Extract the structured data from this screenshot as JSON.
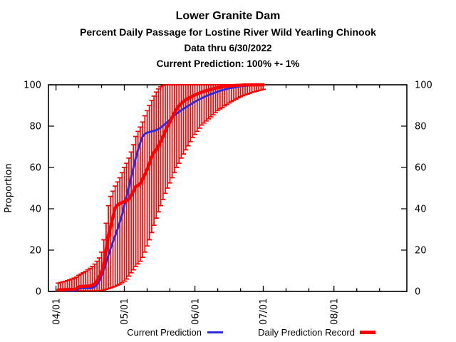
{
  "header": {
    "title": "Lower Granite Dam",
    "subtitle": "Percent Daily Passage for Lostine River Wild Yearling Chinook",
    "data_thru": "Data thru 6/30/2022",
    "prediction": "Current Prediction: 100% +- 1%"
  },
  "legend": {
    "current": "Current Prediction",
    "record": "Daily Prediction Record"
  },
  "chart_data": {
    "type": "line",
    "title": "Lower Granite Dam",
    "ylabel": "Proportion",
    "ylim": [
      0,
      100
    ],
    "y_ticks": [
      0,
      20,
      40,
      60,
      80,
      100
    ],
    "x_range_days": [
      -3.3,
      154
    ],
    "x_major_ticks": [
      {
        "days": 0,
        "label": "04/01"
      },
      {
        "days": 30,
        "label": "05/01"
      },
      {
        "days": 61,
        "label": "06/01"
      },
      {
        "days": 91,
        "label": "07/01"
      },
      {
        "days": 122,
        "label": "08/01"
      }
    ],
    "x_minor_ticks_days": [
      10,
      20,
      40,
      50,
      71,
      81,
      101,
      111,
      132,
      142
    ],
    "colors": {
      "current": "#2b2bdf",
      "record": "#ff0000",
      "axis": "#000000"
    },
    "series": [
      {
        "name": "Current Prediction",
        "color": "#2b2bdf",
        "x_start_day": 1,
        "x_step_days": 1,
        "values": [
          0.5,
          0.5,
          0.5,
          0.5,
          0.5,
          0.5,
          0.5,
          0.5,
          0.5,
          1.3,
          1.6,
          1.6,
          1.6,
          1.6,
          1.6,
          1.7,
          2.2,
          3.2,
          5,
          7.5,
          10.5,
          14,
          17.5,
          21,
          24,
          27,
          30,
          33.5,
          37,
          41.5,
          46,
          50.5,
          55.5,
          60,
          64.5,
          68.5,
          72,
          75,
          76.3,
          76.8,
          77.1,
          77.4,
          77.7,
          78.1,
          78.6,
          79.3,
          80.2,
          81.1,
          82.1,
          83.1,
          84.1,
          85.1,
          86,
          86.9,
          87.7,
          88.4,
          89.1,
          89.8,
          90.5,
          91.2,
          91.8,
          92.4,
          93,
          93.5,
          94,
          94.5,
          95,
          95.5,
          95.9,
          96.3,
          96.7,
          97.1,
          97.4,
          97.7,
          98,
          98.3,
          98.5,
          98.7,
          98.9,
          99.1,
          99.3,
          99.4,
          99.5,
          99.6,
          99.7,
          99.8,
          99.85,
          99.9,
          99.95,
          100,
          100
        ]
      },
      {
        "name": "Daily Prediction Record",
        "color": "#ff0000",
        "x_start_day": 1,
        "x_step_days": 1,
        "values": [
          0.8,
          0.8,
          0.8,
          0.9,
          0.9,
          1,
          1,
          1,
          1.2,
          2.3,
          2.4,
          2.5,
          2.5,
          2.6,
          2.7,
          3,
          3.6,
          5,
          7,
          9.4,
          13,
          20,
          27,
          31.5,
          36,
          40.5,
          41.8,
          42.5,
          43,
          43.4,
          44,
          44.8,
          46.5,
          48.5,
          50.8,
          51.3,
          52.2,
          54.5,
          56.6,
          59,
          61.7,
          65,
          67.3,
          68.6,
          70.5,
          72.7,
          75,
          77.6,
          80,
          82,
          84.2,
          86.4,
          88.2,
          89.8,
          90.9,
          91.9,
          92.8,
          93.4,
          94,
          94.6,
          95.1,
          95.6,
          96,
          96.4,
          96.8,
          97.2,
          97.5,
          97.8,
          98.1,
          98.4,
          98.6,
          98.8,
          99,
          99.2,
          99.3,
          99.4,
          99.5,
          99.6,
          99.7,
          99.75,
          99.8,
          99.85,
          99.9,
          99.92,
          99.94,
          99.95,
          99.96,
          99.97,
          99.98,
          99.99,
          100
        ],
        "err_hi": [
          4,
          4.3,
          4.6,
          4.9,
          5.2,
          5.6,
          6,
          6.4,
          6.9,
          7.8,
          8.4,
          9,
          9.7,
          10.4,
          11.2,
          12.1,
          13.2,
          14.6,
          16.2,
          19,
          25,
          33,
          41.5,
          46,
          48.5,
          51,
          53,
          55,
          57.5,
          60,
          62,
          64.5,
          67.5,
          71,
          75,
          77.5,
          79.5,
          82,
          85,
          87.5,
          90,
          92.5,
          94.5,
          96.5,
          98,
          99,
          99.6,
          100,
          100,
          100,
          100,
          100,
          100,
          100,
          100,
          100,
          100,
          100,
          100,
          100,
          100,
          100,
          100,
          100,
          100,
          100,
          100,
          100,
          100,
          100,
          100,
          100,
          100,
          100,
          100,
          100,
          100,
          100,
          100,
          100,
          100,
          100,
          100,
          100,
          100,
          100,
          100,
          100,
          100,
          100,
          100
        ],
        "err_lo": [
          0.3,
          0.3,
          0.3,
          0.3,
          0.3,
          0.3,
          0.3,
          0.3,
          0.3,
          0.3,
          0.3,
          0.3,
          0.3,
          0.3,
          0.3,
          0.3,
          0.3,
          0.3,
          0.4,
          0.5,
          0.7,
          1,
          1.3,
          1.7,
          2.1,
          2.5,
          3,
          3.5,
          4.2,
          5,
          6,
          7.4,
          9,
          10.5,
          12,
          13.3,
          14.6,
          16.5,
          19,
          22,
          25,
          28.5,
          32,
          35.5,
          38.5,
          41.5,
          44.5,
          47.5,
          50,
          52.5,
          55,
          57.5,
          60,
          62,
          64.5,
          66.5,
          68.5,
          70.5,
          72.5,
          74.5,
          76,
          77.5,
          79,
          80.5,
          81.5,
          82.5,
          83.5,
          84.5,
          85.5,
          86.5,
          87.5,
          88.3,
          89,
          89.8,
          90.5,
          91.2,
          91.9,
          92.5,
          93.1,
          93.7,
          94.2,
          94.7,
          95.1,
          95.5,
          95.9,
          96.3,
          96.6,
          96.9,
          97.2,
          97.5,
          97.8
        ]
      }
    ]
  }
}
